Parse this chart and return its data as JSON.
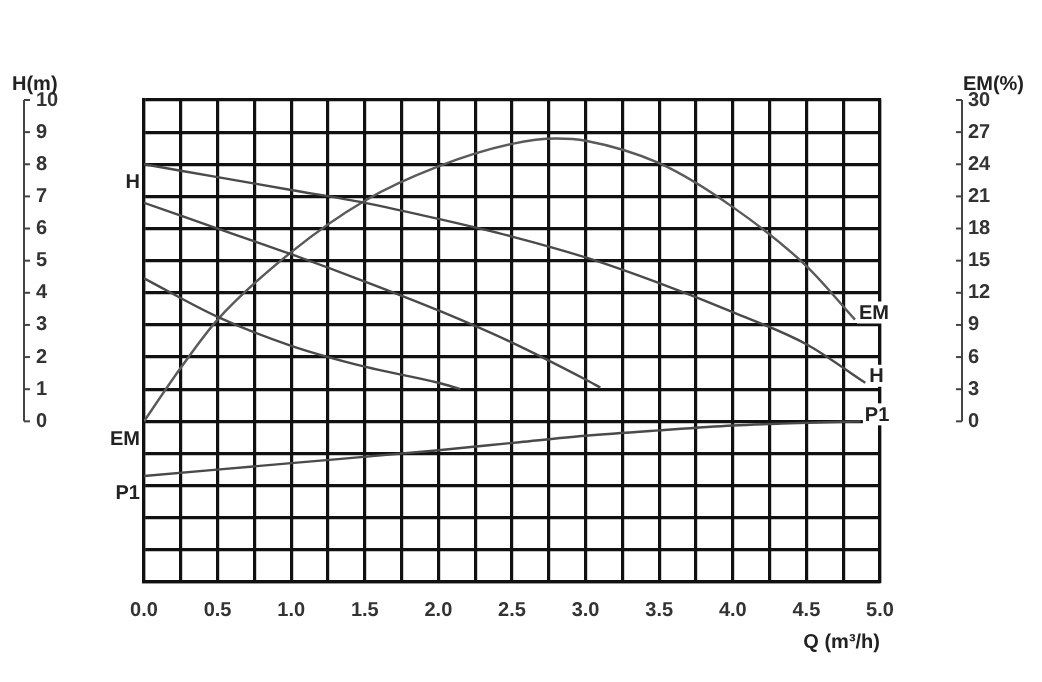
{
  "chart_data": {
    "type": "line",
    "xlabel": "Q (m³/h)",
    "ylabel": "H(m)",
    "y2label": "EM(%)",
    "xlim": [
      0,
      5
    ],
    "xticks": [
      {
        "value": 0,
        "label": "0.0"
      },
      {
        "value": 0.25,
        "label": null
      },
      0.5,
      {
        "value": 0.75,
        "label": null
      },
      {
        "value": 1,
        "label": "1.0"
      },
      {
        "value": 1.25,
        "label": null
      },
      1.5,
      {
        "value": 1.75,
        "label": null
      },
      {
        "value": 2,
        "label": "2.0"
      },
      {
        "value": 2.25,
        "label": null
      },
      2.5,
      {
        "value": 2.75,
        "label": null
      },
      {
        "value": 3,
        "label": "3.0"
      },
      {
        "value": 3.25,
        "label": null
      },
      3.5,
      {
        "value": 3.75,
        "label": null
      },
      {
        "value": 4,
        "label": "4.0"
      },
      {
        "value": 4.25,
        "label": null
      },
      4.5,
      {
        "value": 4.75,
        "label": null
      },
      {
        "value": 5,
        "label": "5.0"
      }
    ],
    "ylim": [
      -5,
      10
    ],
    "yticks": [
      {
        "value": -5,
        "label": null
      },
      {
        "value": -4,
        "label": null
      },
      {
        "value": -3,
        "label": null
      },
      {
        "value": -2,
        "label": null
      },
      {
        "value": -1,
        "label": null
      },
      0,
      1,
      2,
      3,
      4,
      5,
      6,
      7,
      8,
      9,
      10
    ],
    "y2lim": [
      -15,
      30
    ],
    "y2ticks": [
      0,
      3,
      6,
      9,
      12,
      15,
      18,
      21,
      24,
      27,
      30
    ],
    "grid": true,
    "legend": false,
    "marker": "none",
    "series": [
      {
        "name": "H",
        "color": "#4a4a4a",
        "x": [
          0,
          0.5,
          1,
          1.5,
          2,
          2.5,
          3,
          3.5,
          4,
          4.5,
          4.9
        ],
        "values": [
          8,
          7.6,
          7.2,
          6.8,
          6.3,
          5.75,
          5.1,
          4.3,
          3.4,
          2.4,
          1.2
        ]
      },
      {
        "color": "#4a4a4a",
        "x": [
          0,
          0.5,
          1,
          1.5,
          2,
          2.5,
          3,
          3.1
        ],
        "values": [
          6.8,
          6,
          5.2,
          4.35,
          3.45,
          2.45,
          1.3,
          1.05
        ]
      },
      {
        "color": "#4a4a4a",
        "x": [
          0,
          0.5,
          1,
          1.5,
          2,
          2.15
        ],
        "values": [
          4.45,
          3.25,
          2.35,
          1.7,
          1.2,
          1
        ]
      },
      {
        "name": "EM",
        "axis": "y2",
        "color": "#5a5a5a",
        "x": [
          0,
          0.25,
          0.5,
          1,
          1.5,
          2,
          2.5,
          2.8,
          3,
          3.5,
          4,
          4.5,
          4.83
        ],
        "values": [
          0,
          5,
          9.5,
          15.8,
          20.6,
          23.8,
          25.9,
          26.4,
          26.2,
          24.1,
          20,
          14.5,
          9.5
        ]
      },
      {
        "name": "P1",
        "color": "#4a4a4a",
        "x": [
          0,
          1,
          2,
          2.55,
          3,
          3.5,
          4,
          4.33,
          4.87
        ],
        "values": [
          -1.7,
          -1.3,
          -0.9,
          -0.65,
          -0.45,
          -0.28,
          -0.13,
          -0.07,
          0
        ]
      }
    ]
  }
}
